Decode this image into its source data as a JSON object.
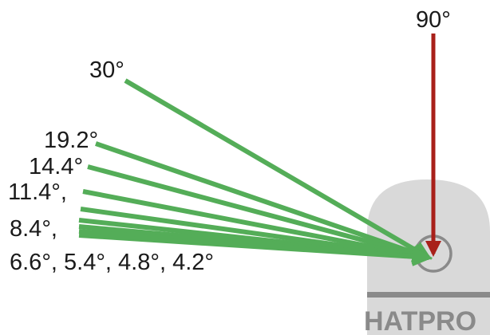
{
  "zenith_label": "90°",
  "angle_labels": {
    "a30": "30°",
    "a19_2": "19.2°",
    "a14_4": "14.4°",
    "a11_4": "11.4°,",
    "a8_4": "8.4°,",
    "low_group": "6.6°, 5.4°, 4.8°, 4.2°"
  },
  "instrument_name": "HATPRO",
  "colors": {
    "beam_green": "#54ad58",
    "zenith_red": "#a8201a",
    "instrument_gray": "#d9d9d9",
    "brand_gray": "#8a8a8a"
  }
}
